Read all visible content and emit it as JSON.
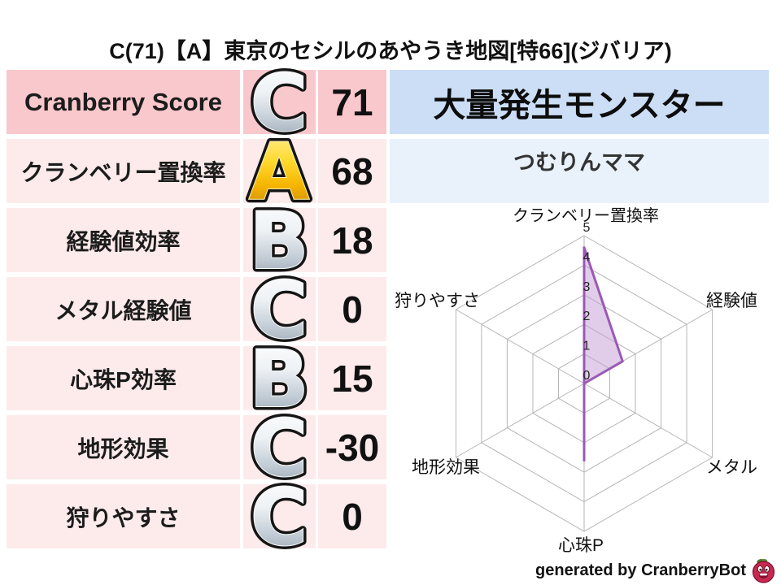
{
  "page": {
    "title": "C(71)【A】東京のセシルのあやうき地図[特66](ジバリア)",
    "background": "#ffffff"
  },
  "table": {
    "rows": [
      {
        "label": "Cranberry Score",
        "grade": "C",
        "value": "71",
        "emphasis": true
      },
      {
        "label": "クランベリー置換率",
        "grade": "A",
        "value": "68",
        "emphasis": false
      },
      {
        "label": "経験値効率",
        "grade": "B",
        "value": "18",
        "emphasis": false
      },
      {
        "label": "メタル経験値",
        "grade": "C",
        "value": "0",
        "emphasis": false
      },
      {
        "label": "心珠P効率",
        "grade": "B",
        "value": "15",
        "emphasis": false
      },
      {
        "label": "地形効果",
        "grade": "C",
        "value": "-30",
        "emphasis": false
      },
      {
        "label": "狩りやすさ",
        "grade": "C",
        "value": "0",
        "emphasis": false
      }
    ],
    "colors": {
      "row_strong_bg": "#f9c8cc",
      "row_bg": "#fdebeb",
      "grade_gold": "#f5b400",
      "grade_silver": "#c3cdd6"
    }
  },
  "monster_panel": {
    "header": "大量発生モンスター",
    "name": "つむりんママ",
    "header_bg": "#cbdef5",
    "name_bg": "#e9f2fb"
  },
  "chart_data": {
    "type": "radar",
    "title": "",
    "axes": [
      "クランベリー置換率",
      "経験値",
      "メタル",
      "心珠P",
      "地形効果",
      "狩りやすさ"
    ],
    "values": [
      4.6,
      1.5,
      0,
      2.6,
      0,
      0
    ],
    "range": [
      0,
      5
    ],
    "ticks": [
      "0",
      "1",
      "2",
      "3",
      "4",
      "5"
    ],
    "grid_shape": "hexagon",
    "grid_on": true,
    "legend": "none",
    "line_color": "#9b59b6",
    "fill_color": "#c39bd3",
    "grid_color": "#b5b5b5",
    "tick_color": "#222222",
    "axis_label_color": "#111111"
  },
  "footer": {
    "text": "generated by CranberryBot",
    "logo": "cranberry-bot-logo"
  }
}
